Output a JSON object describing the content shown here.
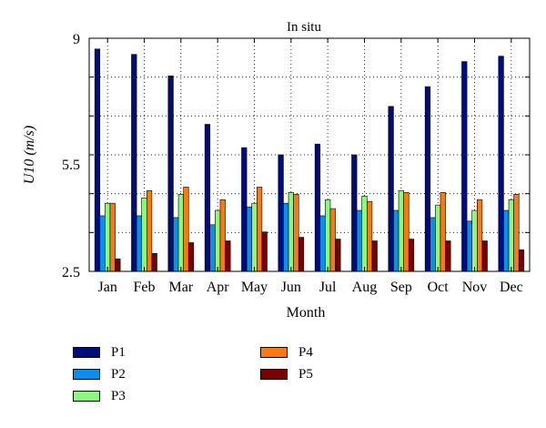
{
  "chart_data": {
    "type": "bar",
    "title": "In situ",
    "xlabel": "Month",
    "ylabel": "U10 (m/s)",
    "ylim": [
      2.5,
      9
    ],
    "yticks": [
      "2.5",
      "5.5",
      "9"
    ],
    "ytick_values": [
      2.5,
      5.5,
      9
    ],
    "grid": true,
    "categories": [
      "Jan",
      "Feb",
      "Mar",
      "Apr",
      "May",
      "Jun",
      "Jul",
      "Aug",
      "Sep",
      "Oct",
      "Nov",
      "Dec"
    ],
    "series": [
      {
        "name": "P1",
        "color": "#000c7a",
        "values": [
          8.7,
          8.55,
          7.95,
          6.6,
          5.95,
          5.75,
          6.05,
          5.75,
          7.1,
          7.65,
          8.35,
          8.5
        ]
      },
      {
        "name": "P2",
        "color": "#0a8fef",
        "values": [
          4.05,
          4.05,
          4.0,
          3.8,
          4.3,
          4.4,
          4.05,
          4.2,
          4.2,
          4.0,
          3.9,
          4.2
        ]
      },
      {
        "name": "P3",
        "color": "#8bf77c",
        "values": [
          4.4,
          4.55,
          4.65,
          4.2,
          4.4,
          4.7,
          4.5,
          4.6,
          4.75,
          4.35,
          4.2,
          4.5
        ]
      },
      {
        "name": "P4",
        "color": "#f77a14",
        "values": [
          4.4,
          4.75,
          4.85,
          4.5,
          4.85,
          4.65,
          4.25,
          4.45,
          4.7,
          4.7,
          4.5,
          4.65
        ]
      },
      {
        "name": "P5",
        "color": "#7a0000",
        "values": [
          2.85,
          3.0,
          3.3,
          3.35,
          3.6,
          3.45,
          3.4,
          3.35,
          3.4,
          3.35,
          3.35,
          3.1
        ]
      }
    ]
  }
}
